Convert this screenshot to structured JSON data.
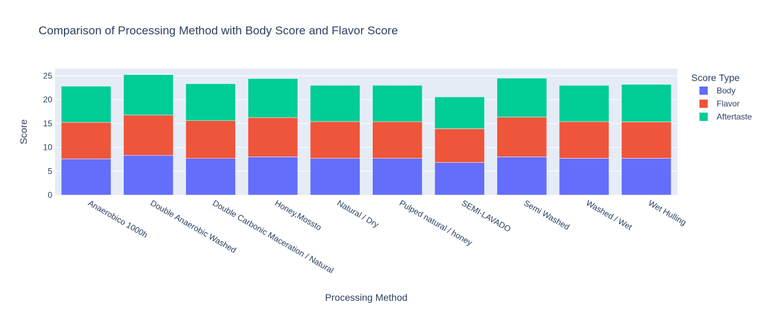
{
  "chart_data": {
    "type": "bar",
    "barmode": "stack",
    "title": "Comparison of Processing Method with Body Score and Flavor Score",
    "xlabel": "Processing Method",
    "ylabel": "Score",
    "ylim": [
      0,
      26.5
    ],
    "yticks": [
      0,
      5,
      10,
      15,
      20,
      25
    ],
    "grid": true,
    "legend_title": "Score Type",
    "legend_position": "top-right",
    "categories": [
      "Anaerobico 1000h",
      "Double Anaerobic Washed",
      "Double Carbonic Maceration / Natural",
      "Honey,Mossto",
      "Natural / Dry",
      "Pulped natural / honey",
      "SEMI-LAVADO",
      "Semi Washed",
      "Washed / Wet",
      "Wet Hulling"
    ],
    "series": [
      {
        "name": "Body",
        "color": "#636efa",
        "values": [
          7.58,
          8.33,
          7.67,
          8.0,
          7.69,
          7.69,
          6.83,
          8.0,
          7.7,
          7.7
        ]
      },
      {
        "name": "Flavor",
        "color": "#ef553b",
        "values": [
          7.67,
          8.42,
          7.92,
          8.25,
          7.72,
          7.7,
          7.08,
          8.33,
          7.7,
          7.65
        ]
      },
      {
        "name": "Aftertaste",
        "color": "#00cc96",
        "values": [
          7.58,
          8.5,
          7.75,
          8.17,
          7.6,
          7.62,
          6.67,
          8.17,
          7.6,
          7.85
        ]
      }
    ]
  }
}
